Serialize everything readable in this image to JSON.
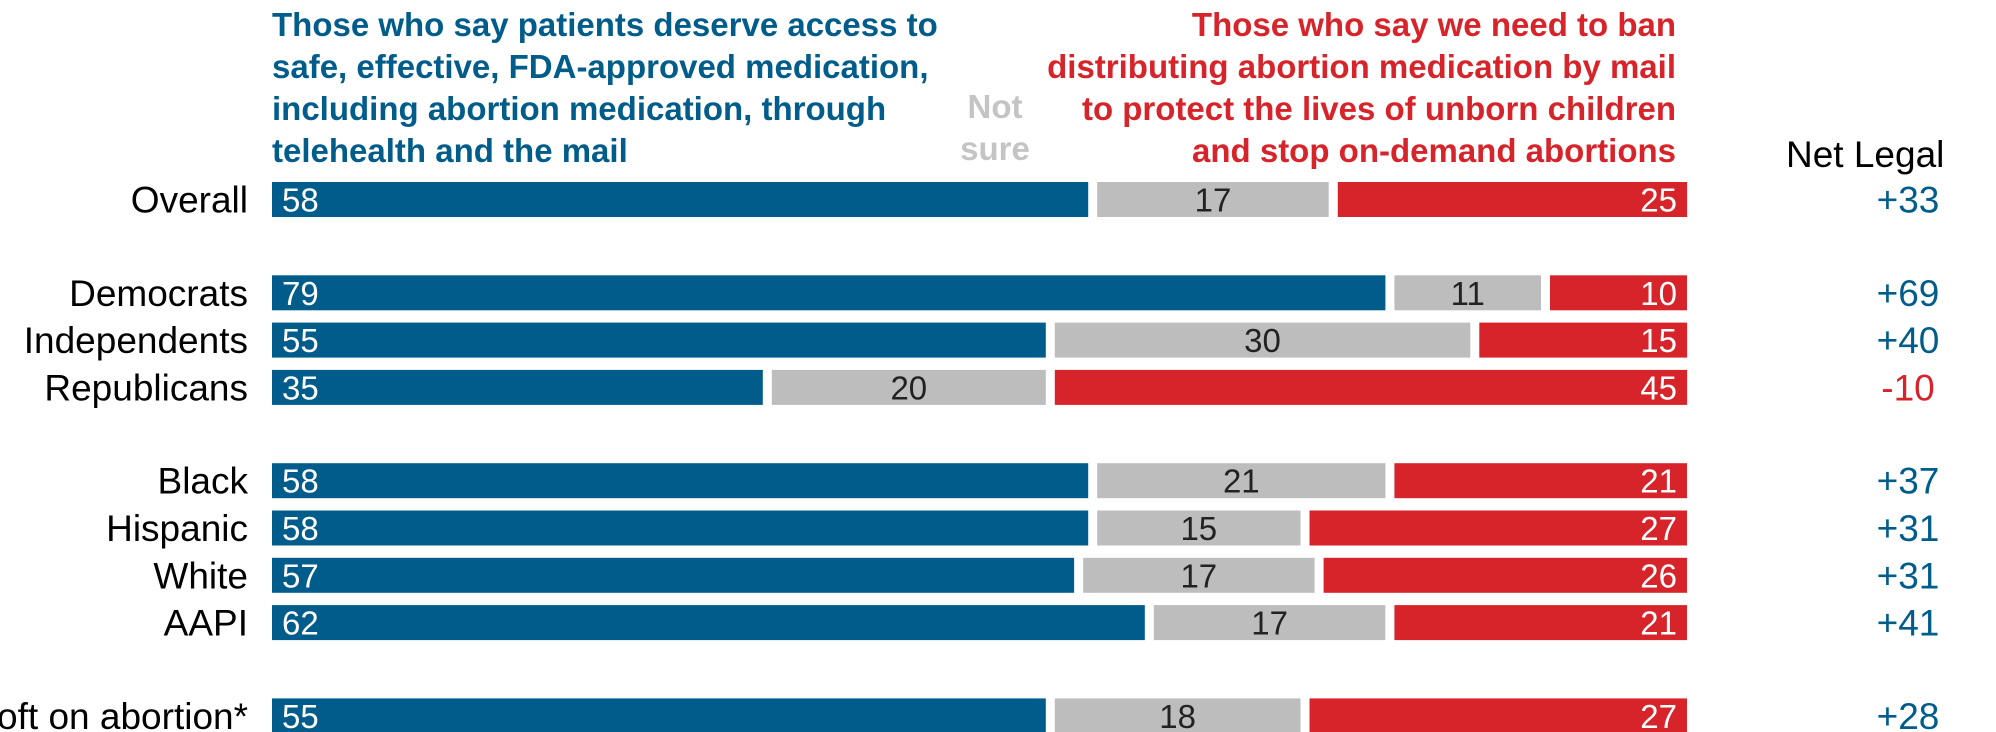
{
  "colors": {
    "legal": "#005c8a",
    "not_sure": "#bdbdbd",
    "ban": "#d7242a",
    "not_sure_label": "#c4c4c4",
    "net_positive": "#005c8a",
    "net_negative": "#d7242a"
  },
  "legend": {
    "left": "Those who say patients deserve access to\nsafe, effective, FDA-approved medication,\nincluding abortion medication, through\ntelehealth and the mail",
    "middle": "Not\nsure",
    "right": "Those who say we need to ban\ndistributing abortion medication by mail\nto protect the lives of unborn children\nand stop on-demand abortions"
  },
  "net_header": "Net Legal",
  "chart_data": {
    "type": "bar",
    "orientation": "horizontal",
    "stacked": true,
    "xlim": [
      0,
      100
    ],
    "categories": [
      "Overall",
      "Democrats",
      "Independents",
      "Republicans",
      "Black",
      "Hispanic",
      "White",
      "AAPI",
      "oft on abortion*"
    ],
    "series": [
      {
        "name": "Those who say patients deserve access to safe, effective, FDA-approved medication, including abortion medication, through telehealth and the mail",
        "values": [
          58,
          79,
          55,
          35,
          58,
          58,
          57,
          62,
          55
        ]
      },
      {
        "name": "Not sure",
        "values": [
          17,
          11,
          30,
          20,
          21,
          15,
          17,
          17,
          18
        ]
      },
      {
        "name": "Those who say we need to ban distributing abortion medication by mail to protect the lives of unborn children and stop on-demand abortions",
        "values": [
          25,
          10,
          15,
          45,
          21,
          27,
          26,
          21,
          27
        ]
      }
    ],
    "net": [
      "+33",
      "+69",
      "+40",
      "-10",
      "+37",
      "+31",
      "+31",
      "+41",
      "+28"
    ],
    "groups": [
      [
        0
      ],
      [
        1,
        2,
        3
      ],
      [
        4,
        5,
        6,
        7
      ],
      [
        8
      ]
    ]
  }
}
